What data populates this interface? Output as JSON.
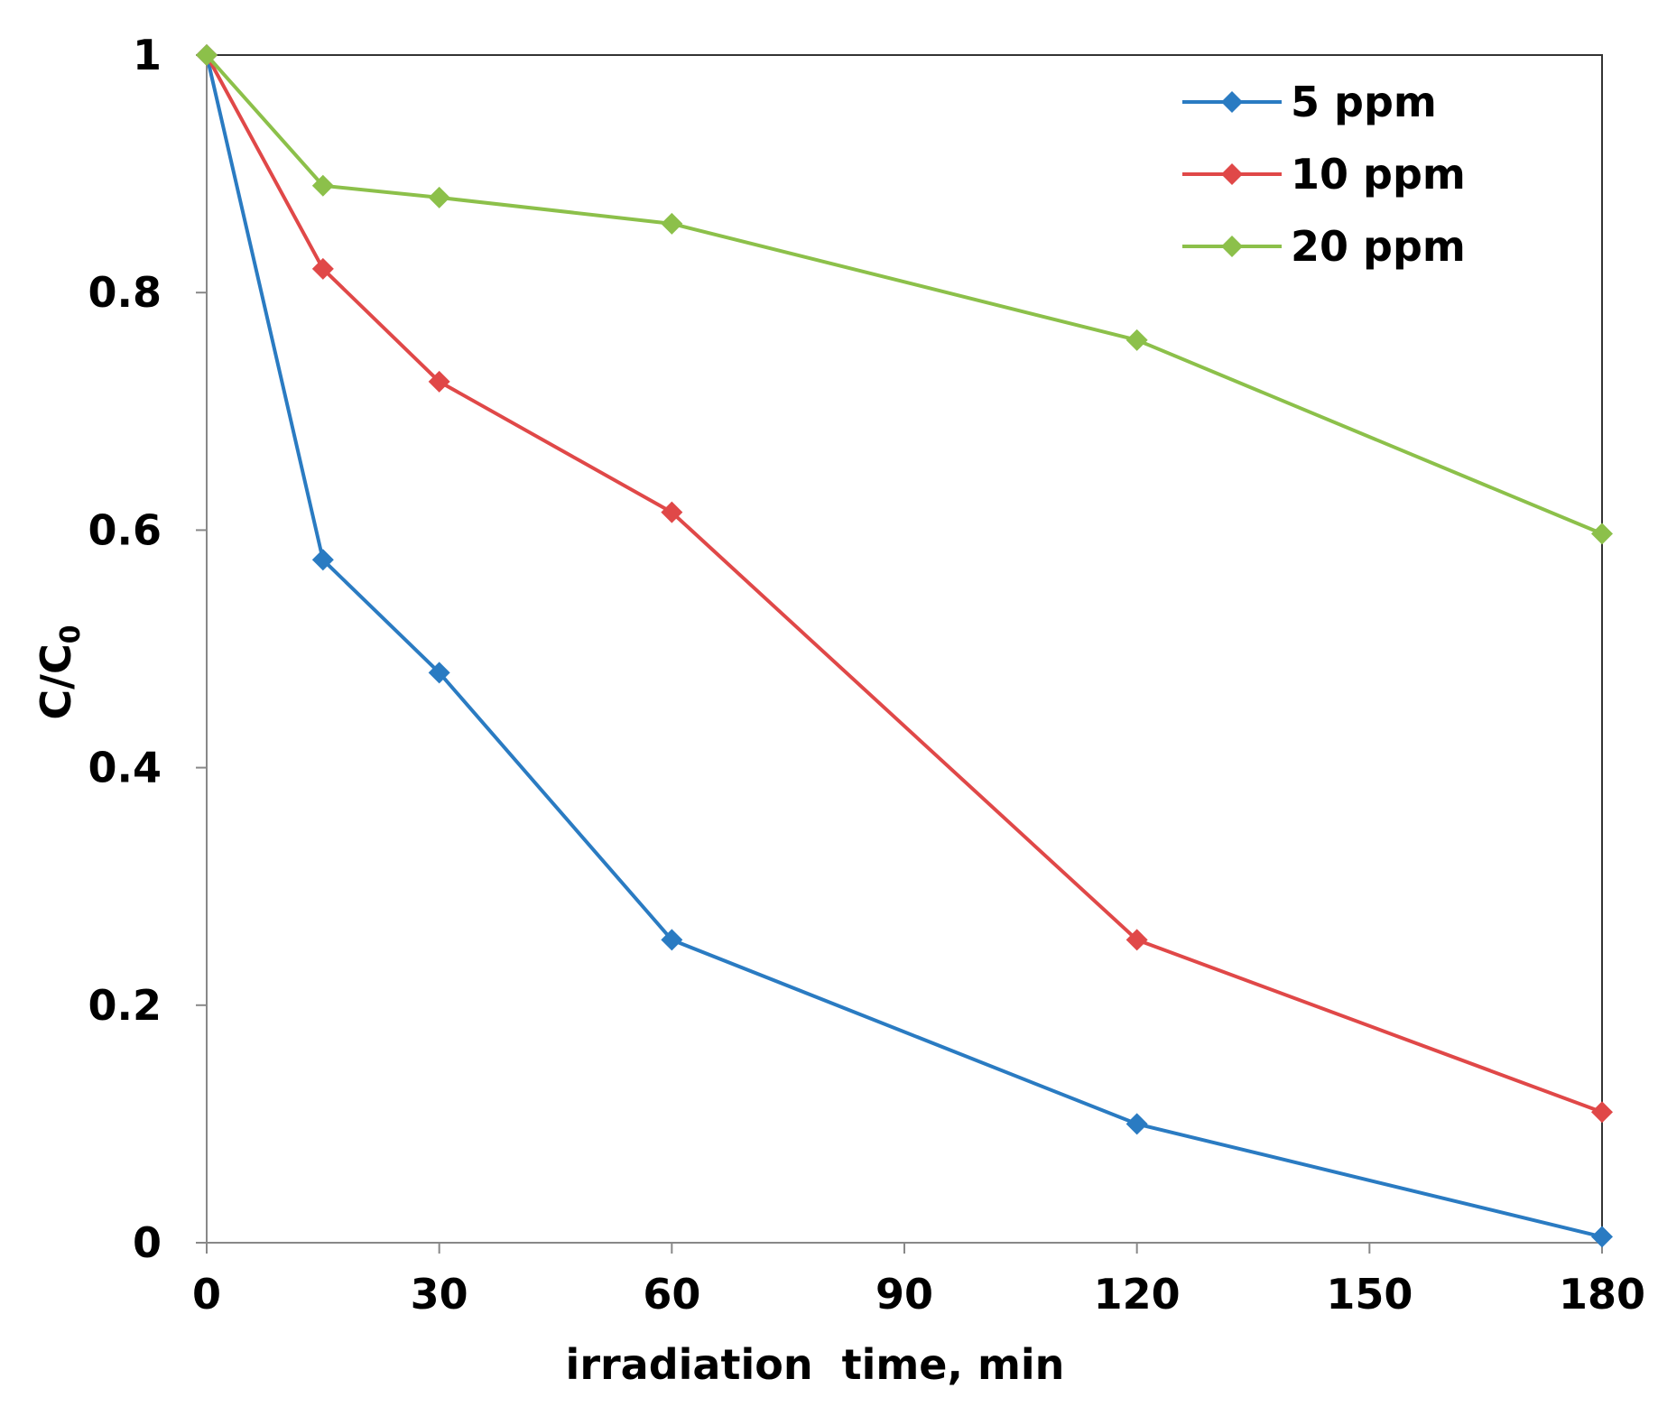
{
  "chart_data": {
    "type": "line",
    "xlabel": "irradiation  time, min",
    "ylabel": "C/C",
    "ylabel_subscript": "0",
    "xlim": [
      0,
      180
    ],
    "ylim": [
      0,
      1
    ],
    "x_ticks": [
      "0",
      "30",
      "60",
      "90",
      "120",
      "150",
      "180"
    ],
    "y_ticks": [
      "0",
      "0.2",
      "0.4",
      "0.6",
      "0.8",
      "1"
    ],
    "grid": false,
    "legend_position": "top-right",
    "series": [
      {
        "name": "5 ppm",
        "color": "#2a7bc2",
        "marker": "diamond",
        "x": [
          0,
          15,
          30,
          60,
          120,
          180
        ],
        "y": [
          1.0,
          0.575,
          0.48,
          0.255,
          0.1,
          0.005
        ]
      },
      {
        "name": "10 ppm",
        "color": "#e04848",
        "marker": "diamond",
        "x": [
          0,
          15,
          30,
          60,
          120,
          180
        ],
        "y": [
          1.0,
          0.82,
          0.725,
          0.615,
          0.255,
          0.11
        ]
      },
      {
        "name": " 20 ppm",
        "color": "#8cc04a",
        "marker": "diamond",
        "x": [
          0,
          15,
          30,
          60,
          120,
          180
        ],
        "y": [
          1.0,
          0.89,
          0.88,
          0.858,
          0.76,
          0.597
        ]
      }
    ]
  }
}
